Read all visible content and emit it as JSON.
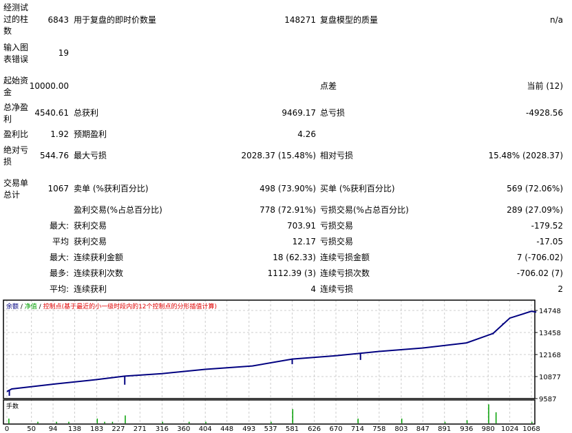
{
  "report": {
    "bars_tested_label": "经测试过的柱数",
    "bars_tested": "6843",
    "ticks_label": "用于复盘的即时价数量",
    "ticks": "148271",
    "quality_label": "复盘模型的质量",
    "quality": "n/a",
    "errors_label": "输入图表错误",
    "errors": "19",
    "deposit_label": "起始资金",
    "deposit": "10000.00",
    "spread_label": "点差",
    "spread": "当前 (12)",
    "net_profit_label": "总净盈利",
    "net_profit": "4540.61",
    "gross_profit_label": "总获利",
    "gross_profit": "9469.17",
    "gross_loss_label": "总亏损",
    "gross_loss": "-4928.56",
    "profit_factor_label": "盈利比",
    "profit_factor": "1.92",
    "expected_payoff_label": "预期盈利",
    "expected_payoff": "4.26",
    "abs_drawdown_label": "绝对亏损",
    "abs_drawdown": "544.76",
    "max_drawdown_label": "最大亏损",
    "max_drawdown": "2028.37 (15.48%)",
    "rel_drawdown_label": "相对亏损",
    "rel_drawdown": "15.48% (2028.37)",
    "total_trades_label": "交易单总计",
    "total_trades": "1067",
    "short_label": "卖单 (%获利百分比)",
    "short": "498 (73.90%)",
    "long_label": "买单 (%获利百分比)",
    "long": "569 (72.06%)",
    "profit_trades_label": "盈利交易(%占总百分比)",
    "profit_trades": "778 (72.91%)",
    "loss_trades_label": "亏损交易(%占总百分比)",
    "loss_trades": "289 (27.09%)",
    "largest_label": "最大:",
    "largest_profit_label": "获利交易",
    "largest_profit": "703.91",
    "largest_loss_label": "亏损交易",
    "largest_loss": "-179.52",
    "average_label": "平均",
    "average_profit_label": "获利交易",
    "average_profit": "12.17",
    "average_loss_label": "亏损交易",
    "average_loss": "-17.05",
    "max_label": "最大:",
    "max_cons_wins_label": "连续获利金额",
    "max_cons_wins": "18 (62.33)",
    "max_cons_losses_label": "连续亏损金额",
    "max_cons_losses": "7 (-706.02)",
    "maximal_label": "最多:",
    "maximal_cons_profit_label": "连续获利次数",
    "maximal_cons_profit": "1112.39 (3)",
    "maximal_cons_loss_label": "连续亏损次数",
    "maximal_cons_loss": "-706.02 (7)",
    "avg_cons_label": "平均:",
    "avg_cons_wins_label": "连续获利",
    "avg_cons_wins": "4",
    "avg_cons_losses_label": "连续亏损",
    "avg_cons_losses": "2"
  },
  "chart_data": {
    "type": "line",
    "legend": {
      "balance": "余额",
      "sep": " / ",
      "equity": "净值",
      "control": "控制点(基于最近的小一级时段内的12个控制点的分形插值计算)"
    },
    "colors": {
      "balance": "#000080",
      "equity": "#00a000",
      "control": "#e00000",
      "volume": "#00a000"
    },
    "y_ticks": [
      14748,
      13458,
      12168,
      10877,
      9587
    ],
    "ylim": [
      9587,
      14748
    ],
    "x_ticks": [
      0,
      50,
      94,
      138,
      183,
      227,
      271,
      316,
      360,
      404,
      448,
      493,
      537,
      581,
      626,
      670,
      714,
      758,
      803,
      847,
      891,
      936,
      980,
      1024,
      1068
    ],
    "xlim": [
      0,
      1080
    ],
    "balance": [
      [
        0,
        10000
      ],
      [
        10,
        10150
      ],
      [
        100,
        10450
      ],
      [
        183,
        10700
      ],
      [
        240,
        10900
      ],
      [
        316,
        11050
      ],
      [
        404,
        11300
      ],
      [
        500,
        11500
      ],
      [
        581,
        11900
      ],
      [
        670,
        12100
      ],
      [
        758,
        12350
      ],
      [
        847,
        12550
      ],
      [
        936,
        12850
      ],
      [
        990,
        13400
      ],
      [
        1024,
        14300
      ],
      [
        1068,
        14700
      ],
      [
        1078,
        14650
      ]
    ],
    "equity_dips": [
      [
        5,
        9750
      ],
      [
        240,
        10400
      ],
      [
        581,
        11600
      ],
      [
        720,
        11850
      ],
      [
        990,
        13350
      ],
      [
        1010,
        14000
      ]
    ],
    "volume_label": "手数",
    "volume": [
      [
        3,
        3
      ],
      [
        62,
        1
      ],
      [
        100,
        1
      ],
      [
        125,
        1
      ],
      [
        183,
        3
      ],
      [
        198,
        1
      ],
      [
        214,
        1
      ],
      [
        240,
        5
      ],
      [
        316,
        1
      ],
      [
        370,
        1
      ],
      [
        404,
        1
      ],
      [
        537,
        1
      ],
      [
        581,
        9
      ],
      [
        714,
        3
      ],
      [
        803,
        3
      ],
      [
        891,
        1
      ],
      [
        936,
        2
      ],
      [
        980,
        12
      ],
      [
        995,
        7
      ],
      [
        1068,
        1
      ]
    ]
  }
}
